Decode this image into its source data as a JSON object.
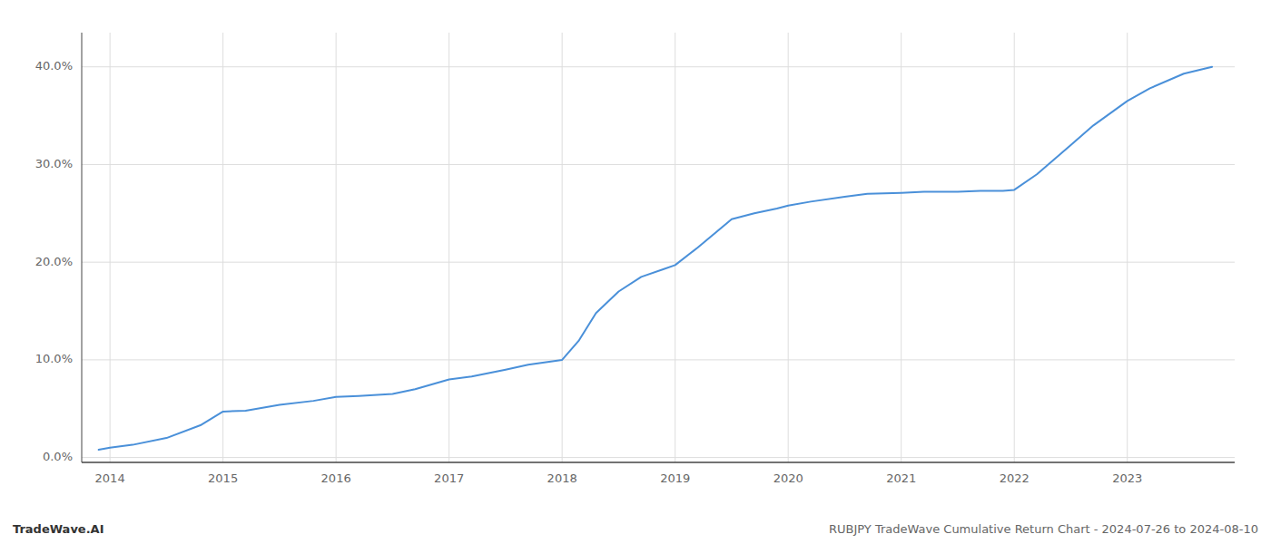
{
  "chart_data": {
    "type": "line",
    "x": [
      2013.9,
      2014.0,
      2014.2,
      2014.5,
      2014.8,
      2015.0,
      2015.2,
      2015.5,
      2015.8,
      2016.0,
      2016.2,
      2016.5,
      2016.7,
      2017.0,
      2017.2,
      2017.5,
      2017.7,
      2018.0,
      2018.15,
      2018.3,
      2018.5,
      2018.7,
      2018.9,
      2019.0,
      2019.2,
      2019.5,
      2019.7,
      2019.9,
      2020.0,
      2020.2,
      2020.5,
      2020.7,
      2021.0,
      2021.2,
      2021.5,
      2021.7,
      2021.9,
      2022.0,
      2022.2,
      2022.5,
      2022.7,
      2023.0,
      2023.2,
      2023.5,
      2023.75
    ],
    "values": [
      0.008,
      0.01,
      0.013,
      0.02,
      0.033,
      0.047,
      0.048,
      0.054,
      0.058,
      0.062,
      0.063,
      0.065,
      0.07,
      0.08,
      0.083,
      0.09,
      0.095,
      0.1,
      0.12,
      0.148,
      0.17,
      0.185,
      0.193,
      0.197,
      0.215,
      0.244,
      0.25,
      0.255,
      0.258,
      0.262,
      0.267,
      0.27,
      0.271,
      0.272,
      0.272,
      0.273,
      0.273,
      0.274,
      0.29,
      0.32,
      0.34,
      0.365,
      0.378,
      0.393,
      0.4
    ],
    "color": "#4a90d9",
    "xlim": [
      2013.75,
      2023.95
    ],
    "xticks": [
      2014,
      2015,
      2016,
      2017,
      2018,
      2019,
      2020,
      2021,
      2022,
      2023
    ],
    "ylim": [
      -0.005,
      0.435
    ],
    "yticks": [
      {
        "value": 0.0,
        "label": "0.0%"
      },
      {
        "value": 0.1,
        "label": "10.0%"
      },
      {
        "value": 0.2,
        "label": "20.0%"
      },
      {
        "value": 0.3,
        "label": "30.0%"
      },
      {
        "value": 0.4,
        "label": "40.0%"
      }
    ],
    "grid": true,
    "annotations": [
      "TradeWave.AI",
      "RUBJPY TradeWave Cumulative Return Chart - 2024-07-26 to 2024-08-10"
    ]
  }
}
